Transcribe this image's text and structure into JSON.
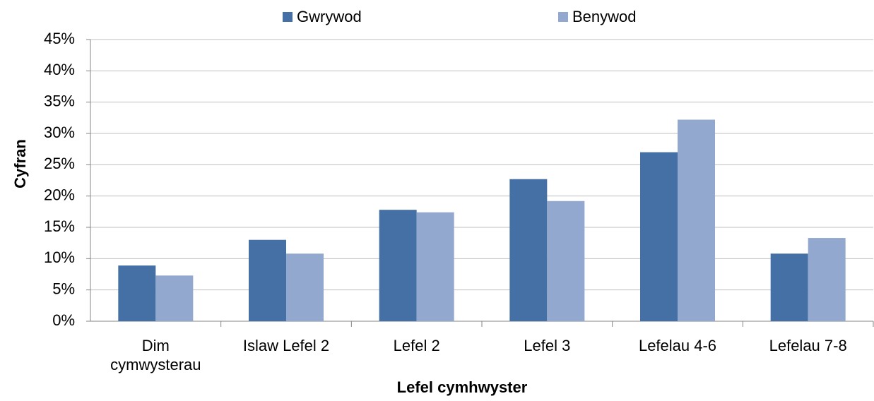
{
  "chart_data": {
    "type": "bar",
    "xlabel": "Lefel cymhwyster",
    "ylabel": "Cyfran",
    "categories": [
      "Dim cymwysterau",
      "Islaw Lefel 2",
      "Lefel 2",
      "Lefel 3",
      "Lefelau 4-6",
      "Lefelau 7-8"
    ],
    "series": [
      {
        "name": "Gwrywod",
        "color": "#4470a6",
        "values": [
          8.9,
          13.0,
          17.8,
          22.7,
          27.0,
          10.8
        ]
      },
      {
        "name": "Benywod",
        "color": "#93a8cf",
        "values": [
          7.3,
          10.8,
          17.4,
          19.2,
          32.2,
          13.3
        ]
      }
    ],
    "ylim": [
      0,
      45
    ],
    "yticks": [
      {
        "value": 0,
        "label": "0%"
      },
      {
        "value": 5,
        "label": "5%"
      },
      {
        "value": 10,
        "label": "10%"
      },
      {
        "value": 15,
        "label": "15%"
      },
      {
        "value": 20,
        "label": "20%"
      },
      {
        "value": 25,
        "label": "25%"
      },
      {
        "value": 30,
        "label": "30%"
      },
      {
        "value": 35,
        "label": "35%"
      },
      {
        "value": 40,
        "label": "40%"
      },
      {
        "value": 45,
        "label": "45%"
      }
    ],
    "grid": true,
    "legend": "top"
  }
}
